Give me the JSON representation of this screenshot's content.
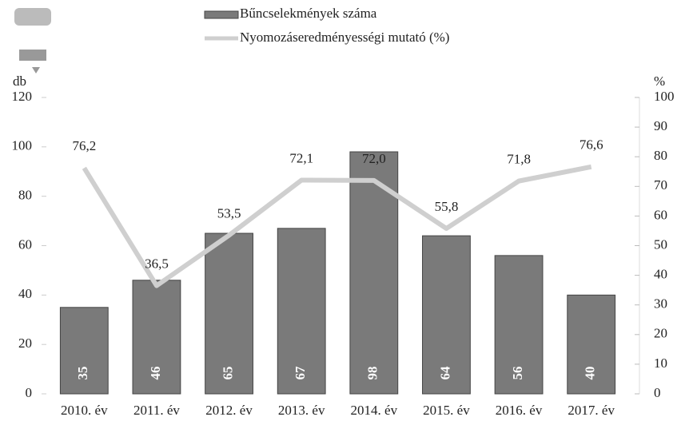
{
  "chart_data": {
    "type": "bar",
    "categories": [
      "2010. év",
      "2011. év",
      "2012. év",
      "2013. év",
      "2014. év",
      "2015. év",
      "2016. év",
      "2017. év"
    ],
    "series": [
      {
        "name": "Bűncselekmények száma",
        "color": "#7a7a7a",
        "type": "bar",
        "values": [
          35,
          46,
          65,
          67,
          98,
          64,
          56,
          40
        ]
      },
      {
        "name": "Nyomozáseredményességi mutató (%)",
        "color": "#cfcfcf",
        "type": "line",
        "axis": "y2",
        "values": [
          76.2,
          36.5,
          53.5,
          72.1,
          72.0,
          55.8,
          71.8,
          76.6
        ],
        "value_labels": [
          "76,2",
          "36,5",
          "53,5",
          "72,1",
          "72,0",
          "55,8",
          "71,8",
          "76,6"
        ]
      }
    ],
    "y_label": "db",
    "y2_label": "%",
    "ylim": [
      0,
      120
    ],
    "yticks": [
      0,
      20,
      40,
      60,
      80,
      100,
      120
    ],
    "y2lim": [
      0,
      100
    ],
    "y2ticks": [
      0,
      10,
      20,
      30,
      40,
      50,
      60,
      70,
      80,
      90,
      100
    ]
  }
}
